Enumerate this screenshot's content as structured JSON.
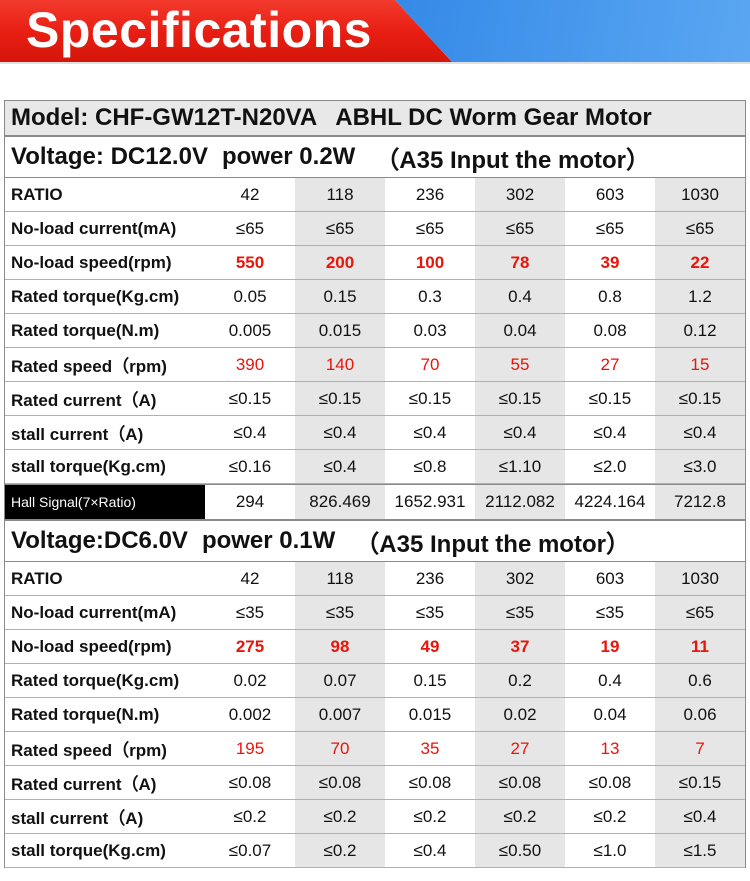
{
  "banner": {
    "title": "Specifications"
  },
  "model": {
    "label": "Model: CHF-GW12T-N20VA",
    "desc": "ABHL DC Worm Gear Motor"
  },
  "section1": {
    "voltage": "Voltage: DC12.0V",
    "power": "power 0.2W",
    "input": "（A35 Input the motor）",
    "rows": [
      {
        "label": "RATIO",
        "values": [
          "42",
          "118",
          "236",
          "302",
          "603",
          "1030"
        ]
      },
      {
        "label": "No-load current(mA)",
        "values": [
          "≤65",
          "≤65",
          "≤65",
          "≤65",
          "≤65",
          "≤65"
        ]
      },
      {
        "label": "No-load speed(rpm)",
        "values": [
          "550",
          "200",
          "100",
          "78",
          "39",
          "22"
        ]
      },
      {
        "label": "Rated torque(Kg.cm)",
        "values": [
          "0.05",
          "0.15",
          "0.3",
          "0.4",
          "0.8",
          "1.2"
        ]
      },
      {
        "label": "Rated torque(N.m)",
        "values": [
          "0.005",
          "0.015",
          "0.03",
          "0.04",
          "0.08",
          "0.12"
        ]
      },
      {
        "label": "Rated speed（rpm)",
        "values": [
          "390",
          "140",
          "70",
          "55",
          "27",
          "15"
        ]
      },
      {
        "label": "Rated current（A)",
        "values": [
          "≤0.15",
          "≤0.15",
          "≤0.15",
          "≤0.15",
          "≤0.15",
          "≤0.15"
        ]
      },
      {
        "label": "stall current（A)",
        "values": [
          "≤0.4",
          "≤0.4",
          "≤0.4",
          "≤0.4",
          "≤0.4",
          "≤0.4"
        ]
      },
      {
        "label": "stall torque(Kg.cm)",
        "values": [
          "≤0.16",
          "≤0.4",
          "≤0.8",
          "≤1.10",
          "≤2.0",
          "≤3.0"
        ]
      }
    ],
    "hall": {
      "label": "Hall Signal(7×Ratio)",
      "values": [
        "294",
        "826.469",
        "1652.931",
        "2112.082",
        "4224.164",
        "7212.8"
      ]
    }
  },
  "section2": {
    "voltage": "Voltage:DC6.0V",
    "power": "power 0.1W",
    "input": "（A35 Input the motor）",
    "rows": [
      {
        "label": "RATIO",
        "values": [
          "42",
          "118",
          "236",
          "302",
          "603",
          "1030"
        ]
      },
      {
        "label": "No-load current(mA)",
        "values": [
          "≤35",
          "≤35",
          "≤35",
          "≤35",
          "≤35",
          "≤65"
        ]
      },
      {
        "label": "No-load speed(rpm)",
        "values": [
          "275",
          "98",
          "49",
          "37",
          "19",
          "11"
        ]
      },
      {
        "label": "Rated torque(Kg.cm)",
        "values": [
          "0.02",
          "0.07",
          "0.15",
          "0.2",
          "0.4",
          "0.6"
        ]
      },
      {
        "label": "Rated torque(N.m)",
        "values": [
          "0.002",
          "0.007",
          "0.015",
          "0.02",
          "0.04",
          "0.06"
        ]
      },
      {
        "label": "Rated speed（rpm)",
        "values": [
          "195",
          "70",
          "35",
          "27",
          "13",
          "7"
        ]
      },
      {
        "label": "Rated current（A)",
        "values": [
          "≤0.08",
          "≤0.08",
          "≤0.08",
          "≤0.08",
          "≤0.08",
          "≤0.15"
        ]
      },
      {
        "label": "stall current（A)",
        "values": [
          "≤0.2",
          "≤0.2",
          "≤0.2",
          "≤0.2",
          "≤0.2",
          "≤0.4"
        ]
      },
      {
        "label": "stall torque(Kg.cm)",
        "values": [
          "≤0.07",
          "≤0.2",
          "≤0.4",
          "≤0.50",
          "≤1.0",
          "≤1.5"
        ]
      }
    ]
  },
  "colors": {
    "banner_red": "#e81d12",
    "banner_blue": "#2f86e6",
    "highlight_red": "#e8150b"
  }
}
